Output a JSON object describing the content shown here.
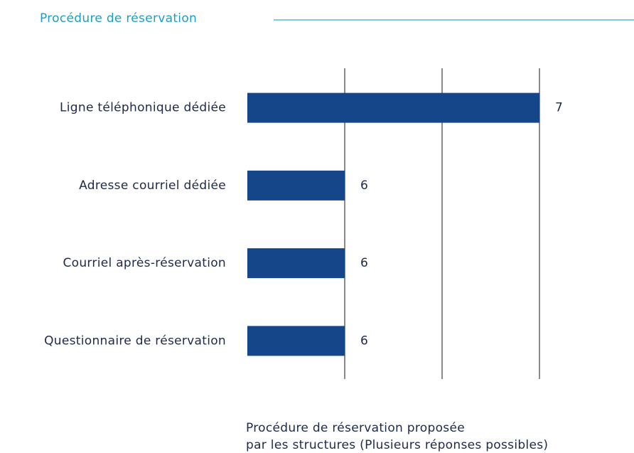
{
  "chart_data": {
    "type": "bar",
    "orientation": "horizontal",
    "title": "Procédure de réservation",
    "categories": [
      "Ligne téléphonique dédiée",
      "Adresse courriel dédiée",
      "Courriel après-réservation",
      "Questionnaire de réservation"
    ],
    "values": [
      7,
      6,
      6,
      6
    ],
    "color": "#15468a",
    "xlim": [
      5.5,
      7
    ],
    "xticks": [
      6,
      6.5,
      7
    ],
    "grid": true,
    "xlabel": [
      "Procédure de réservation proposée",
      "par les structures (Plusieurs réponses possibles)"
    ]
  }
}
